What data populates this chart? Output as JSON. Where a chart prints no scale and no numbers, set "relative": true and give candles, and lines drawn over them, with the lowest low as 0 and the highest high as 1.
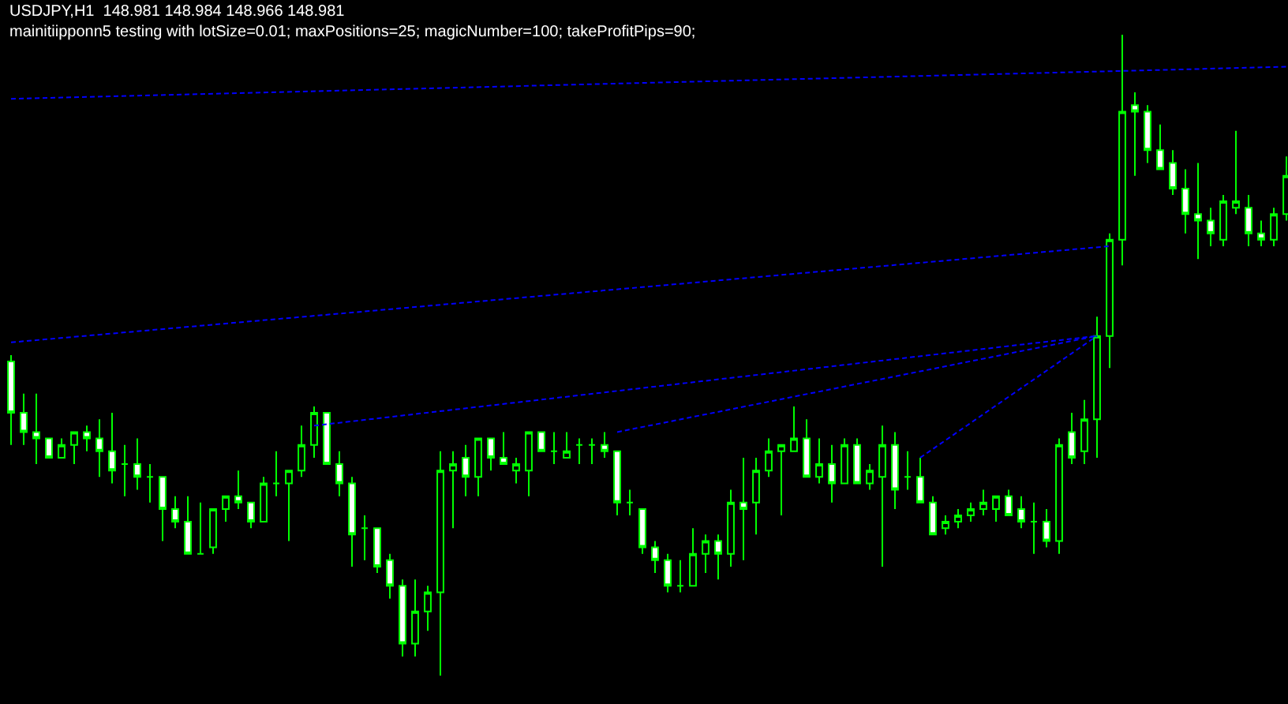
{
  "chart_data": {
    "type": "candlestick",
    "title": "USDJPY,H1  148.981 148.984 148.966 148.981",
    "subtitle": "mainitiipponn5 testing with lotSize=0.01; maxPositions=25; magicNumber=100; takeProfitPips=90;",
    "relative": true,
    "categories": [
      null,
      null,
      null,
      null,
      null,
      null,
      null,
      null,
      null,
      null,
      null,
      null,
      null,
      null,
      null,
      null,
      null,
      null,
      null,
      null,
      null,
      null,
      null,
      null,
      null,
      null,
      null,
      null,
      null,
      null,
      null,
      null,
      null,
      null,
      null,
      null,
      null,
      null,
      null,
      null,
      null,
      null,
      null,
      null,
      null,
      null,
      null,
      null,
      null,
      null,
      null,
      null,
      null,
      null,
      null,
      null,
      null,
      null,
      null,
      null,
      null,
      null,
      null,
      null,
      null,
      null,
      null,
      null,
      null,
      null,
      null,
      null,
      null,
      null,
      null,
      null,
      null,
      null,
      null,
      null,
      null,
      null,
      null,
      null,
      null,
      null,
      null,
      null,
      null,
      null,
      null,
      null,
      null,
      null,
      null,
      null,
      null,
      null,
      null,
      null,
      null,
      null
    ],
    "ohlc": [
      [
        0.49,
        0.5,
        0.36,
        0.41
      ],
      [
        0.41,
        0.44,
        0.36,
        0.38
      ],
      [
        0.38,
        0.44,
        0.33,
        0.37
      ],
      [
        0.37,
        0.37,
        0.34,
        0.34
      ],
      [
        0.34,
        0.37,
        0.34,
        0.36
      ],
      [
        0.36,
        0.38,
        0.33,
        0.38
      ],
      [
        0.38,
        0.39,
        0.35,
        0.37
      ],
      [
        0.37,
        0.4,
        0.31,
        0.35
      ],
      [
        0.35,
        0.41,
        0.3,
        0.32
      ],
      [
        0.33,
        0.36,
        0.28,
        0.33
      ],
      [
        0.33,
        0.37,
        0.29,
        0.31
      ],
      [
        0.31,
        0.33,
        0.27,
        0.31
      ],
      [
        0.31,
        0.31,
        0.21,
        0.26
      ],
      [
        0.26,
        0.28,
        0.23,
        0.24
      ],
      [
        0.24,
        0.28,
        0.19,
        0.19
      ],
      [
        0.19,
        0.27,
        0.19,
        0.19
      ],
      [
        0.2,
        0.26,
        0.19,
        0.26
      ],
      [
        0.26,
        0.28,
        0.24,
        0.28
      ],
      [
        0.28,
        0.32,
        0.26,
        0.27
      ],
      [
        0.27,
        0.27,
        0.23,
        0.24
      ],
      [
        0.24,
        0.31,
        0.24,
        0.3
      ],
      [
        0.3,
        0.35,
        0.28,
        0.3
      ],
      [
        0.3,
        0.32,
        0.21,
        0.32
      ],
      [
        0.32,
        0.39,
        0.31,
        0.36
      ],
      [
        0.36,
        0.42,
        0.34,
        0.41
      ],
      [
        0.41,
        0.41,
        0.33,
        0.33
      ],
      [
        0.33,
        0.35,
        0.28,
        0.3
      ],
      [
        0.3,
        0.31,
        0.17,
        0.22
      ],
      [
        0.23,
        0.25,
        0.18,
        0.23
      ],
      [
        0.23,
        0.23,
        0.16,
        0.17
      ],
      [
        0.18,
        0.19,
        0.12,
        0.14
      ],
      [
        0.14,
        0.15,
        0.03,
        0.05
      ],
      [
        0.05,
        0.15,
        0.03,
        0.1
      ],
      [
        0.1,
        0.14,
        0.07,
        0.13
      ],
      [
        0.13,
        0.35,
        0,
        0.32
      ],
      [
        0.32,
        0.35,
        0.23,
        0.33
      ],
      [
        0.34,
        0.36,
        0.28,
        0.31
      ],
      [
        0.31,
        0.37,
        0.28,
        0.37
      ],
      [
        0.37,
        0.37,
        0.32,
        0.34
      ],
      [
        0.34,
        0.38,
        0.33,
        0.33
      ],
      [
        0.32,
        0.34,
        0.3,
        0.33
      ],
      [
        0.32,
        0.38,
        0.28,
        0.38
      ],
      [
        0.38,
        0.38,
        0.35,
        0.35
      ],
      [
        0.35,
        0.38,
        0.33,
        0.35
      ],
      [
        0.34,
        0.38,
        0.34,
        0.35
      ],
      [
        0.36,
        0.37,
        0.33,
        0.36
      ],
      [
        0.36,
        0.37,
        0.33,
        0.36
      ],
      [
        0.36,
        0.38,
        0.34,
        0.35
      ],
      [
        0.35,
        0.35,
        0.25,
        0.27
      ],
      [
        0.27,
        0.29,
        0.25,
        0.27
      ],
      [
        0.26,
        0.26,
        0.19,
        0.2
      ],
      [
        0.2,
        0.21,
        0.16,
        0.18
      ],
      [
        0.18,
        0.19,
        0.13,
        0.14
      ],
      [
        0.14,
        0.18,
        0.13,
        0.14
      ],
      [
        0.14,
        0.23,
        0.14,
        0.19
      ],
      [
        0.19,
        0.22,
        0.16,
        0.21
      ],
      [
        0.21,
        0.22,
        0.15,
        0.19
      ],
      [
        0.19,
        0.29,
        0.17,
        0.27
      ],
      [
        0.27,
        0.34,
        0.18,
        0.26
      ],
      [
        0.27,
        0.34,
        0.22,
        0.32
      ],
      [
        0.32,
        0.37,
        0.31,
        0.35
      ],
      [
        0.35,
        0.36,
        0.25,
        0.36
      ],
      [
        0.35,
        0.42,
        0.35,
        0.37
      ],
      [
        0.37,
        0.4,
        0.31,
        0.31
      ],
      [
        0.31,
        0.37,
        0.3,
        0.33
      ],
      [
        0.33,
        0.36,
        0.27,
        0.3
      ],
      [
        0.3,
        0.37,
        0.3,
        0.36
      ],
      [
        0.36,
        0.37,
        0.3,
        0.3
      ],
      [
        0.3,
        0.33,
        0.29,
        0.32
      ],
      [
        0.31,
        0.39,
        0.17,
        0.36
      ],
      [
        0.36,
        0.38,
        0.26,
        0.29
      ],
      [
        0.31,
        0.35,
        0.29,
        0.31
      ],
      [
        0.31,
        0.34,
        0.27,
        0.27
      ],
      [
        0.27,
        0.28,
        0.22,
        0.22
      ],
      [
        0.23,
        0.25,
        0.22,
        0.24
      ],
      [
        0.24,
        0.26,
        0.23,
        0.25
      ],
      [
        0.25,
        0.27,
        0.24,
        0.26
      ],
      [
        0.26,
        0.29,
        0.25,
        0.27
      ],
      [
        0.26,
        0.28,
        0.24,
        0.28
      ],
      [
        0.28,
        0.29,
        0.25,
        0.25
      ],
      [
        0.26,
        0.28,
        0.23,
        0.24
      ],
      [
        0.24,
        0.27,
        0.19,
        0.24
      ],
      [
        0.24,
        0.26,
        0.2,
        0.21
      ],
      [
        0.21,
        0.37,
        0.19,
        0.36
      ],
      [
        0.38,
        0.41,
        0.33,
        0.34
      ],
      [
        0.35,
        0.43,
        0.33,
        0.4
      ],
      [
        0.4,
        0.56,
        0.34,
        0.53
      ],
      [
        0.53,
        0.69,
        0.48,
        0.68
      ],
      [
        0.68,
        1,
        0.64,
        0.88
      ],
      [
        0.89,
        0.91,
        0.78,
        0.88
      ],
      [
        0.88,
        0.89,
        0.8,
        0.82
      ],
      [
        0.82,
        0.86,
        0.79,
        0.79
      ],
      [
        0.8,
        0.82,
        0.75,
        0.76
      ],
      [
        0.76,
        0.79,
        0.69,
        0.72
      ],
      [
        0.72,
        0.8,
        0.65,
        0.71
      ],
      [
        0.71,
        0.73,
        0.67,
        0.69
      ],
      [
        0.68,
        0.75,
        0.67,
        0.74
      ],
      [
        0.73,
        0.85,
        0.72,
        0.74
      ],
      [
        0.73,
        0.75,
        0.67,
        0.69
      ],
      [
        0.69,
        0.71,
        0.67,
        0.68
      ],
      [
        0.68,
        0.73,
        0.67,
        0.72
      ],
      [
        0.72,
        0.81,
        0.71,
        0.78
      ]
    ],
    "series": [
      {
        "type": "line",
        "color": "#0000ff",
        "line_style": "dashed",
        "values": [
          0.52,
          null,
          null,
          null,
          null,
          null,
          null,
          null,
          null,
          null,
          null,
          null,
          null,
          null,
          null,
          null,
          null,
          null,
          null,
          null,
          null,
          null,
          null,
          null,
          null,
          null,
          null,
          null,
          null,
          null,
          null,
          null,
          null,
          null,
          null,
          null,
          null,
          null,
          null,
          null,
          null,
          null,
          null,
          null,
          null,
          null,
          null,
          null,
          null,
          null,
          null,
          null,
          null,
          null,
          null,
          null,
          null,
          null,
          null,
          null,
          null,
          null,
          null,
          null,
          null,
          null,
          null,
          null,
          null,
          null,
          null,
          null,
          null,
          null,
          null,
          null,
          null,
          null,
          null,
          null,
          null,
          null,
          null,
          null,
          null,
          null,
          null,
          0.67,
          null,
          null,
          null,
          null,
          null,
          null,
          null,
          null,
          null,
          null,
          null,
          null,
          null,
          null
        ]
      },
      {
        "type": "line",
        "color": "#0000ff",
        "line_style": "dashed",
        "values": [
          null,
          null,
          null,
          null,
          null,
          null,
          null,
          null,
          null,
          null,
          null,
          null,
          null,
          null,
          null,
          null,
          null,
          null,
          null,
          null,
          null,
          null,
          null,
          null,
          0.39,
          null,
          null,
          null,
          null,
          null,
          null,
          null,
          null,
          null,
          null,
          null,
          null,
          null,
          null,
          null,
          null,
          null,
          null,
          null,
          null,
          null,
          null,
          null,
          null,
          null,
          null,
          null,
          null,
          null,
          null,
          null,
          null,
          null,
          null,
          null,
          null,
          null,
          null,
          null,
          null,
          null,
          null,
          null,
          null,
          null,
          null,
          null,
          null,
          null,
          null,
          null,
          null,
          null,
          null,
          null,
          null,
          null,
          null,
          null,
          null,
          null,
          0.53,
          null,
          null,
          null,
          null,
          null,
          null,
          null,
          null,
          null,
          null,
          null,
          null,
          null,
          null,
          null
        ]
      },
      {
        "type": "line",
        "color": "#0000ff",
        "line_style": "dashed",
        "values": [
          null,
          null,
          null,
          null,
          null,
          null,
          null,
          null,
          null,
          null,
          null,
          null,
          null,
          null,
          null,
          null,
          null,
          null,
          null,
          null,
          null,
          null,
          null,
          null,
          null,
          null,
          null,
          null,
          null,
          null,
          null,
          null,
          null,
          null,
          null,
          null,
          null,
          null,
          null,
          null,
          null,
          null,
          null,
          null,
          null,
          null,
          null,
          null,
          0.38,
          null,
          null,
          null,
          null,
          null,
          null,
          null,
          null,
          null,
          null,
          null,
          null,
          null,
          null,
          null,
          null,
          null,
          null,
          null,
          null,
          null,
          null,
          null,
          null,
          null,
          null,
          null,
          null,
          null,
          null,
          null,
          null,
          null,
          null,
          null,
          null,
          null,
          0.53,
          null,
          null,
          null,
          null,
          null,
          null,
          null,
          null,
          null,
          null,
          null,
          null,
          null,
          null,
          null
        ]
      },
      {
        "type": "line",
        "color": "#0000ff",
        "line_style": "dashed",
        "values": [
          null,
          null,
          null,
          null,
          null,
          null,
          null,
          null,
          null,
          null,
          null,
          null,
          null,
          null,
          null,
          null,
          null,
          null,
          null,
          null,
          null,
          null,
          null,
          null,
          null,
          null,
          null,
          null,
          null,
          null,
          null,
          null,
          null,
          null,
          null,
          null,
          null,
          null,
          null,
          null,
          null,
          null,
          null,
          null,
          null,
          null,
          null,
          null,
          null,
          null,
          null,
          null,
          null,
          null,
          null,
          null,
          null,
          null,
          null,
          null,
          null,
          null,
          null,
          null,
          null,
          null,
          null,
          null,
          null,
          null,
          null,
          null,
          0.34,
          null,
          null,
          null,
          null,
          null,
          null,
          null,
          null,
          null,
          null,
          null,
          null,
          null,
          0.53,
          null,
          null,
          null,
          null,
          null,
          null,
          null,
          null,
          null,
          null,
          null,
          null,
          null,
          null,
          null
        ]
      },
      {
        "type": "line",
        "color": "#0000ff",
        "line_style": "dashed",
        "values": [
          0.9,
          null,
          null,
          null,
          null,
          null,
          null,
          null,
          null,
          null,
          null,
          null,
          null,
          null,
          null,
          null,
          null,
          null,
          null,
          null,
          null,
          null,
          null,
          null,
          null,
          null,
          null,
          null,
          null,
          null,
          null,
          null,
          null,
          null,
          null,
          null,
          null,
          null,
          null,
          null,
          null,
          null,
          null,
          null,
          null,
          null,
          null,
          null,
          null,
          null,
          null,
          null,
          null,
          null,
          null,
          null,
          null,
          null,
          null,
          null,
          null,
          null,
          null,
          null,
          null,
          null,
          null,
          null,
          null,
          null,
          null,
          null,
          null,
          null,
          null,
          null,
          null,
          null,
          null,
          null,
          null,
          null,
          null,
          null,
          null,
          null,
          null,
          null,
          null,
          null,
          null,
          null,
          null,
          null,
          null,
          null,
          null,
          null,
          null,
          null,
          null,
          0.95
        ]
      }
    ]
  }
}
